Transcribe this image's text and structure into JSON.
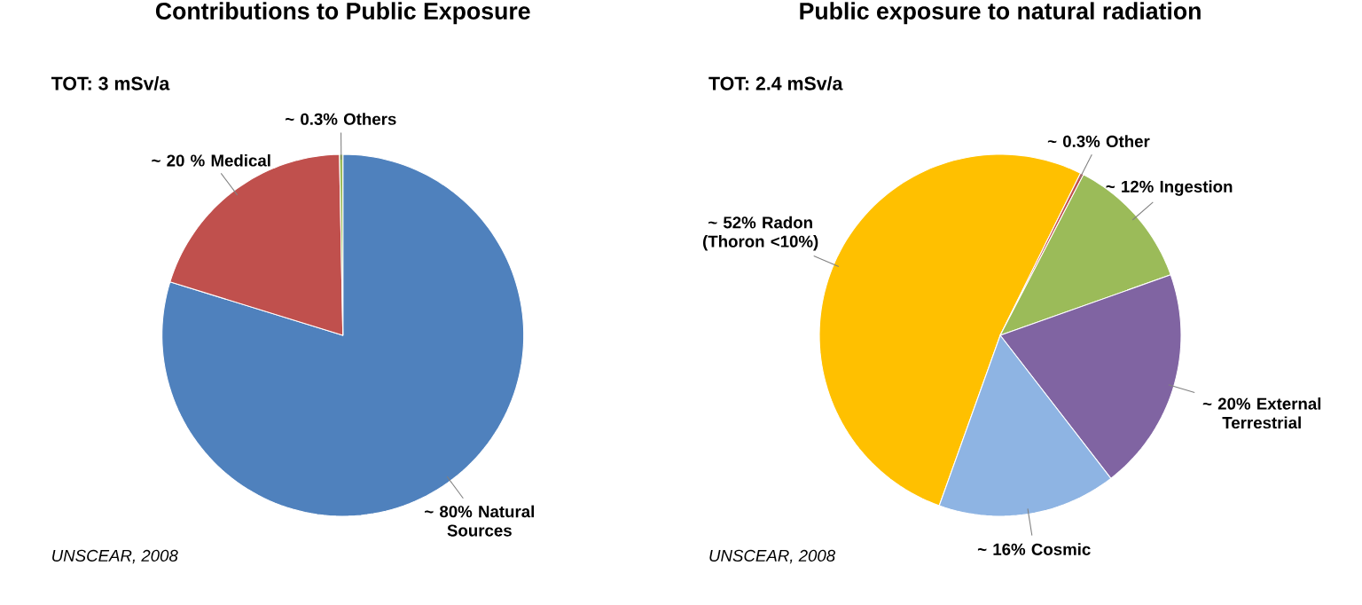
{
  "chart_data": [
    {
      "type": "pie",
      "title": "Contributions to Public Exposure",
      "subtitle": "TOT: 3 mSv/a",
      "categories": [
        "Natural Sources",
        "Medical",
        "Others"
      ],
      "values": [
        80,
        20,
        0.3
      ],
      "value_labels": [
        "~ 80%",
        "~ 20 %",
        "~ 0.3%"
      ],
      "colors": [
        "#4f81bd",
        "#c0504d",
        "#9bbb59"
      ],
      "annotations": [
        "UNSCEAR, 2008"
      ]
    },
    {
      "type": "pie",
      "title": "Public exposure to natural radiation",
      "subtitle": "TOT: 2.4 mSv/a",
      "categories": [
        "Radon (Thoron <10%)",
        "Other",
        "Ingestion",
        "External Terrestrial",
        "Cosmic"
      ],
      "values": [
        52,
        0.3,
        12,
        20,
        16
      ],
      "value_labels": [
        "~ 52%",
        "~ 0.3%",
        "~ 12%",
        "~ 20%",
        "~ 16%"
      ],
      "colors": [
        "#ffc000",
        "#c0504d",
        "#9bbb59",
        "#8064a2",
        "#8eb4e3"
      ],
      "annotations": [
        "UNSCEAR, 2008"
      ]
    }
  ]
}
